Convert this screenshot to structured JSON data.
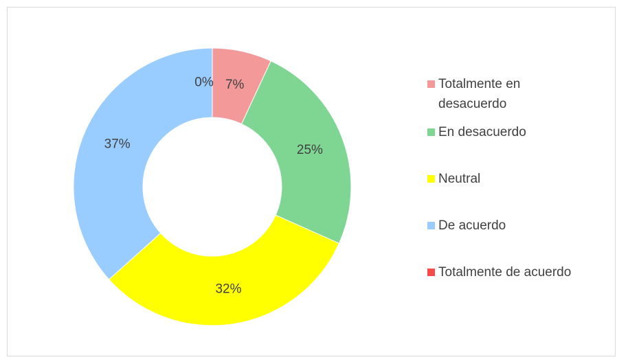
{
  "chart_data": {
    "type": "donut",
    "categories": [
      "Totalmente en desacuerdo",
      "En desacuerdo",
      "Neutral",
      "De acuerdo",
      "Totalmente de acuerdo"
    ],
    "values": [
      7,
      25,
      32,
      37,
      0
    ],
    "value_labels": [
      "7%",
      "25%",
      "32%",
      "37%",
      "0%"
    ],
    "colors": [
      "#f4999a",
      "#7fd693",
      "#ffff00",
      "#99ccff",
      "#f44b4b"
    ],
    "legend": "right"
  }
}
